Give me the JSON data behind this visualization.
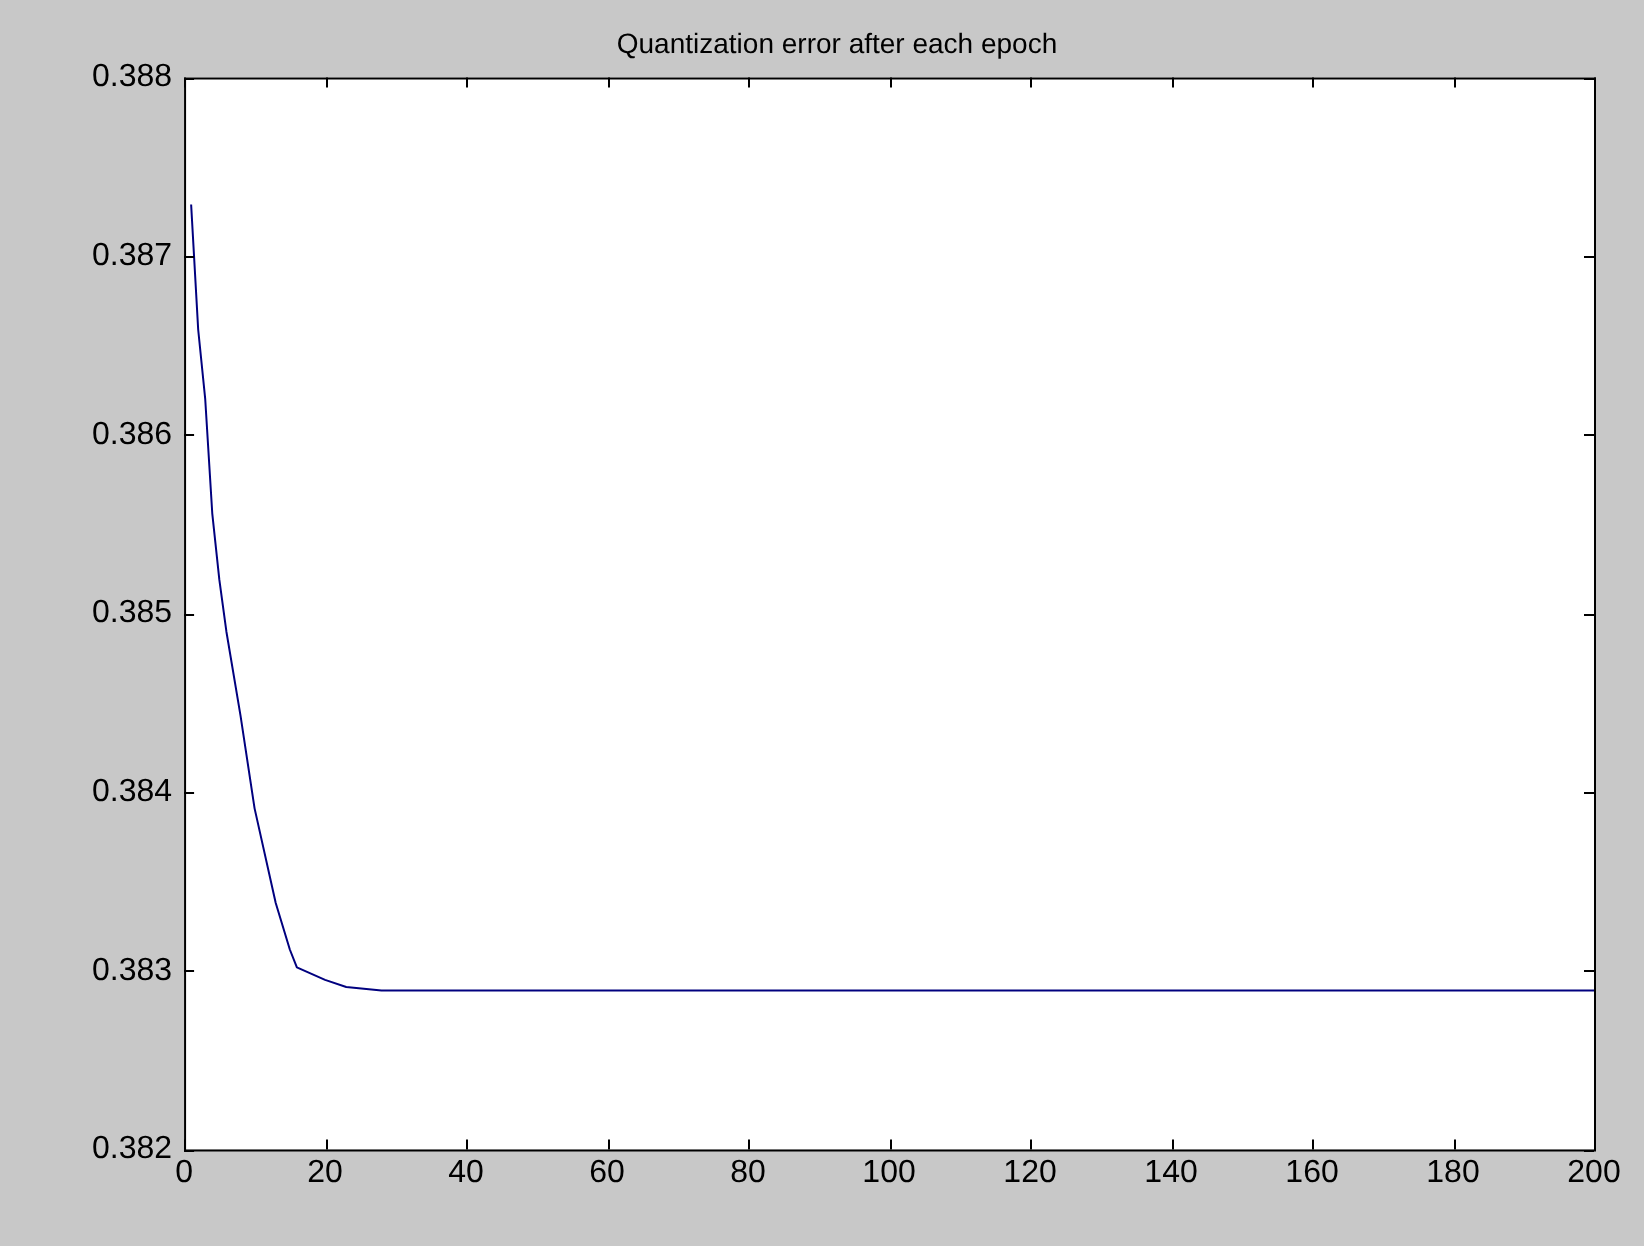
{
  "chart_data": {
    "type": "line",
    "title": "Quantization error after each epoch",
    "series": [
      {
        "color": "#00007f",
        "x": [
          1,
          2,
          3,
          4,
          5,
          6,
          8,
          10,
          13,
          15,
          16,
          20,
          23,
          28,
          200
        ],
        "values": [
          0.38729,
          0.38659,
          0.3862,
          0.38556,
          0.38519,
          0.3849,
          0.38443,
          0.38391,
          0.38338,
          0.38312,
          0.38302,
          0.38295,
          0.38291,
          0.38289,
          0.38289
        ]
      }
    ],
    "xlim": [
      0,
      200
    ],
    "xticks": [
      0,
      20,
      40,
      60,
      80,
      100,
      120,
      140,
      160,
      180,
      200
    ],
    "ylim": [
      0.382,
      0.388
    ],
    "yticks": [
      {
        "value": 0.382,
        "label": "0.382"
      },
      {
        "value": 0.383,
        "label": "0.383"
      },
      {
        "value": 0.384,
        "label": "0.384"
      },
      {
        "value": 0.385,
        "label": "0.385"
      },
      {
        "value": 0.386,
        "label": "0.386"
      },
      {
        "value": 0.387,
        "label": "0.387"
      },
      {
        "value": 0.388,
        "label": "0.388"
      }
    ],
    "grid": false,
    "legend": false,
    "marker": "none",
    "line_style": "solid"
  }
}
